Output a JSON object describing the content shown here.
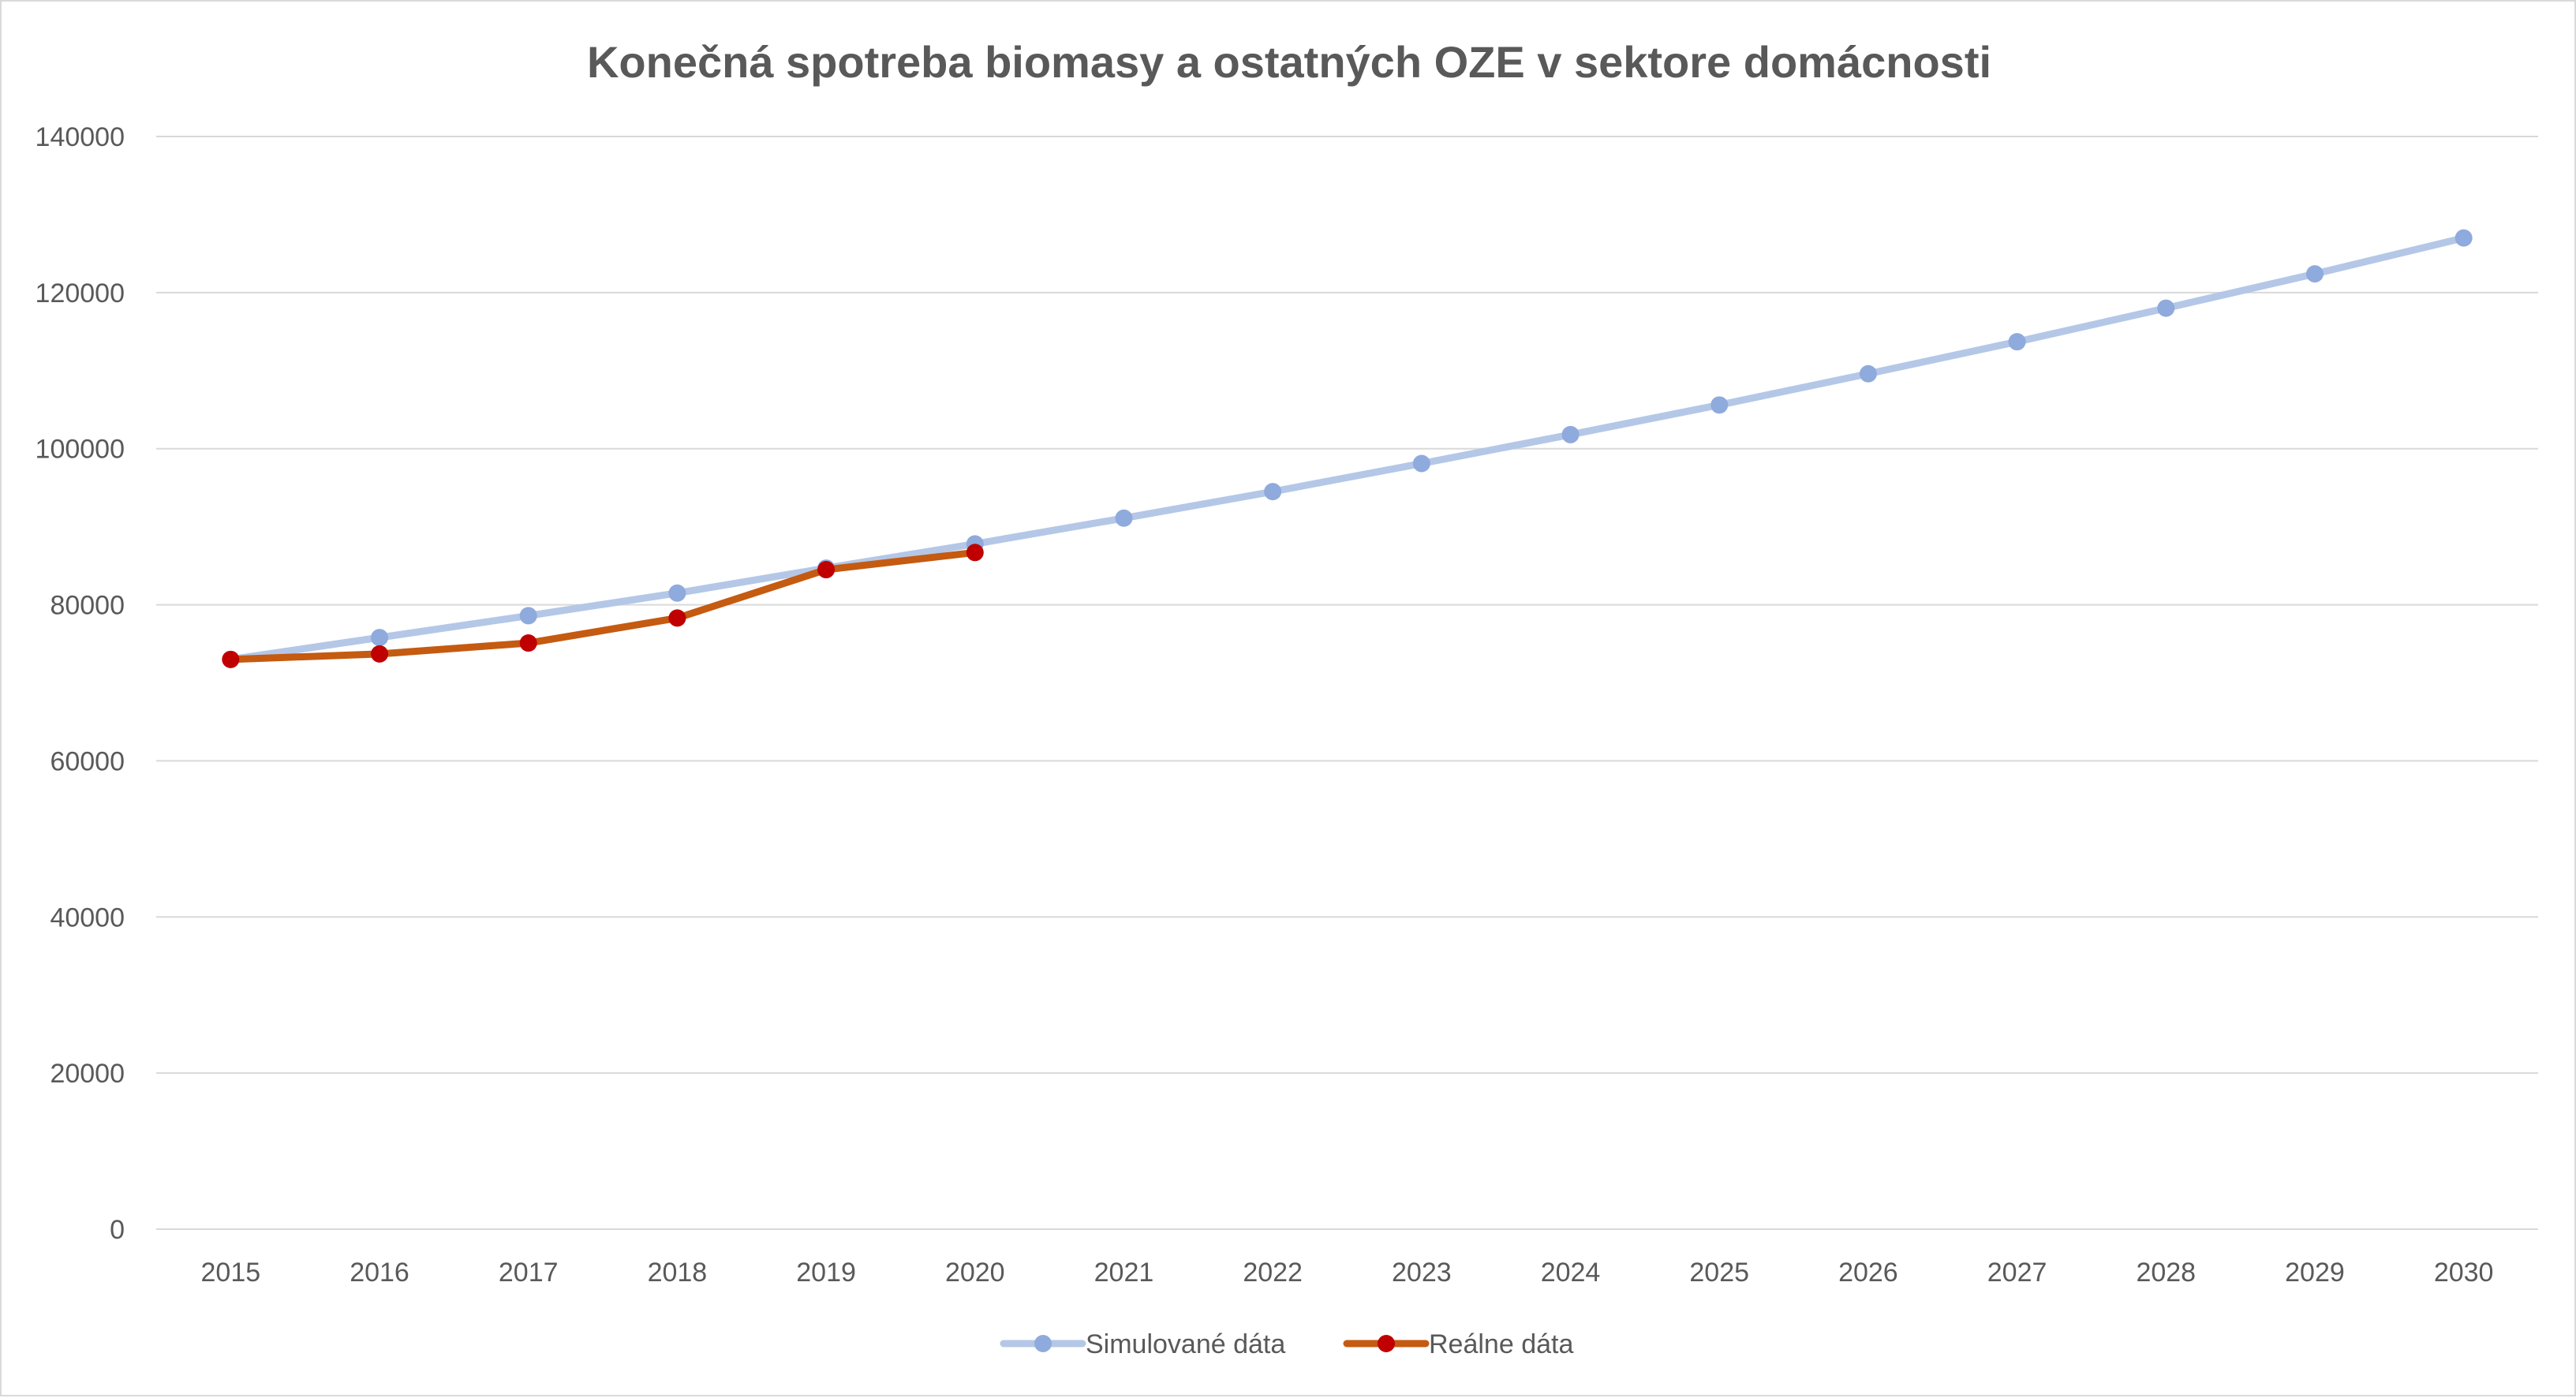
{
  "chart_data": {
    "type": "line",
    "title": "Konečná spotreba  biomasy a ostatných OZE v sektore domácnosti",
    "xlabel": "",
    "ylabel": "",
    "ylim": [
      0,
      140000
    ],
    "yticks": [
      "0",
      "20000",
      "40000",
      "60000",
      "80000",
      "100000",
      "120000",
      "140000"
    ],
    "grid": true,
    "legend_position": "bottom",
    "categories": [
      "2015",
      "2016",
      "2017",
      "2018",
      "2019",
      "2020",
      "2021",
      "2022",
      "2023",
      "2024",
      "2025",
      "2026",
      "2027",
      "2028",
      "2029",
      "2030"
    ],
    "series": [
      {
        "name": "Simulované dáta",
        "color": "#b4c7e7",
        "marker_color": "#8faadc",
        "values": [
          73000,
          75800,
          78600,
          81500,
          84700,
          87800,
          91100,
          94500,
          98100,
          101800,
          105600,
          109600,
          113700,
          118000,
          122400,
          127000
        ]
      },
      {
        "name": "Reálne dáta",
        "color": "#c55a11",
        "marker_color": "#c00000",
        "values": [
          73000,
          73700,
          75100,
          78300,
          84500,
          86700,
          null,
          null,
          null,
          null,
          null,
          null,
          null,
          null,
          null,
          null
        ]
      }
    ]
  }
}
